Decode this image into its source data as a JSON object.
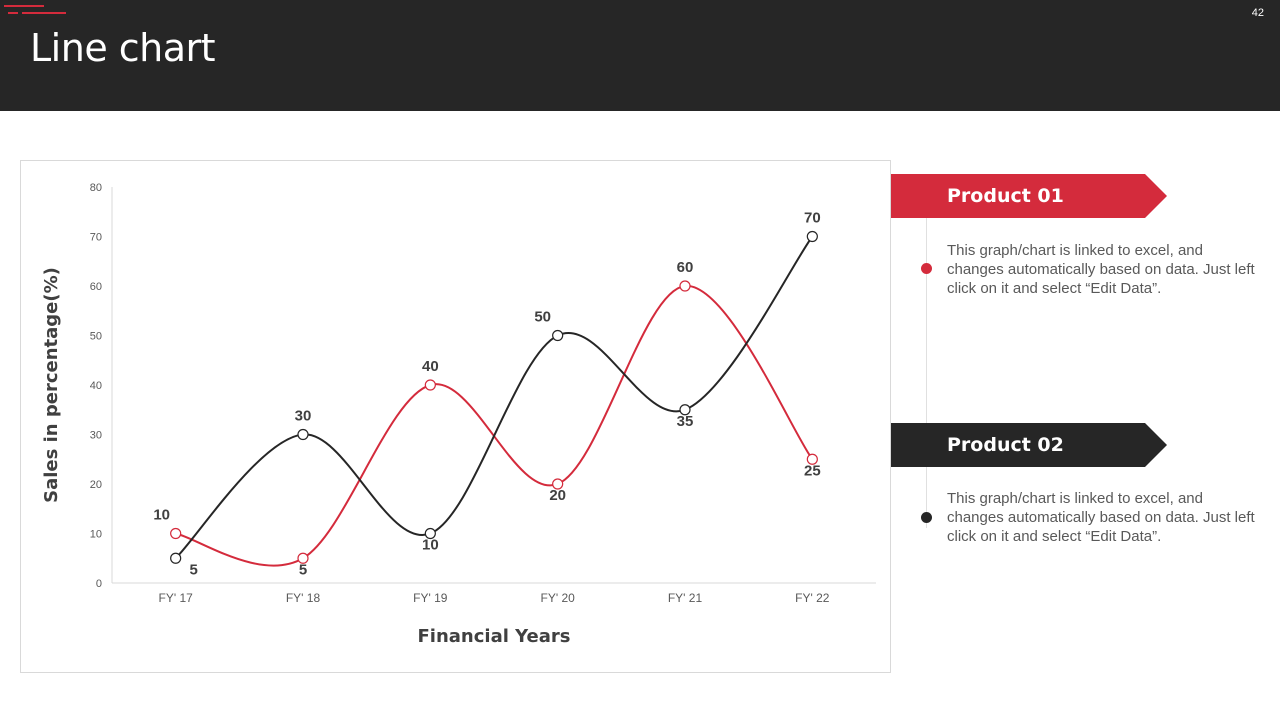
{
  "header": {
    "title": "Line chart",
    "page_number": "42"
  },
  "colors": {
    "accent": "#d42b3c",
    "dark": "#262626",
    "text": "#595959"
  },
  "legend": [
    {
      "name": "Product 01",
      "color": "#d42b3c",
      "description": "This graph/chart is linked to excel, and changes automatically based on data. Just left click on it and select “Edit Data”."
    },
    {
      "name": "Product 02",
      "color": "#262626",
      "description": "This graph/chart is linked to excel, and changes automatically based on data. Just left click on it and select “Edit Data”."
    }
  ],
  "chart_data": {
    "type": "line",
    "categories": [
      "FY' 17",
      "FY' 18",
      "FY' 19",
      "FY' 20",
      "FY' 21",
      "FY' 22"
    ],
    "series": [
      {
        "name": "Product 01",
        "color": "#d42b3c",
        "values": [
          10,
          5,
          40,
          20,
          60,
          25
        ]
      },
      {
        "name": "Product 02",
        "color": "#262626",
        "values": [
          5,
          30,
          10,
          50,
          35,
          70
        ]
      }
    ],
    "xlabel": "Financial Years",
    "ylabel": "Sales in percentage(%)",
    "ylim": [
      0,
      80
    ],
    "yticks": [
      0,
      10,
      20,
      30,
      40,
      50,
      60,
      70,
      80
    ],
    "smooth": true,
    "data_labels": true
  }
}
